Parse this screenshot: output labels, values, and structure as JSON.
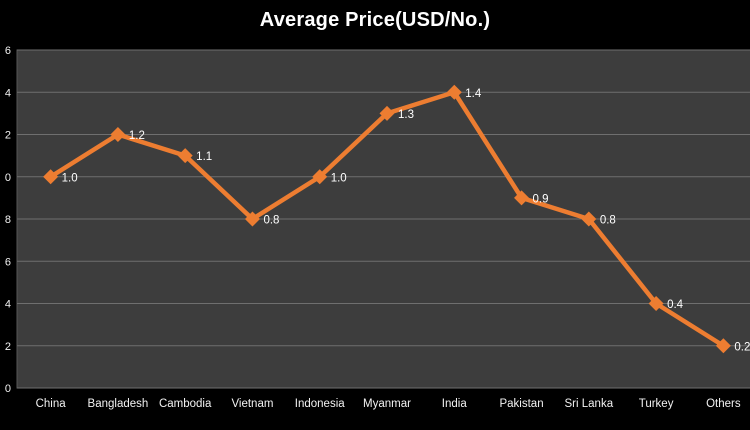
{
  "title": "Average Price(USD/No.)",
  "chart_data": {
    "type": "line",
    "title": "Average Price(USD/No.)",
    "categories": [
      "China",
      "Bangladesh",
      "Cambodia",
      "Vietnam",
      "Indonesia",
      "Myanmar",
      "India",
      "Pakistan",
      "Sri Lanka",
      "Turkey",
      "Others"
    ],
    "series": [
      {
        "name": "Average Price (USD/No.)",
        "values": [
          1.0,
          1.2,
          1.1,
          0.8,
          1.0,
          1.3,
          1.4,
          0.9,
          0.8,
          0.4,
          0.2
        ],
        "data_labels": [
          "1.0",
          "1.2",
          "1.1",
          "0.8",
          "1.0",
          "1.3",
          "1.4",
          "0.9",
          "0.8",
          "0.4",
          "0.2"
        ],
        "color": "#ED7D31",
        "marker": "diamond"
      }
    ],
    "xlabel": "",
    "ylabel": "",
    "ylim": [
      0,
      1.6
    ],
    "y_tick_step": 0.2,
    "y_tick_labels_visible_bottom_to_top": [
      "0",
      "2",
      "4",
      "6",
      "8",
      "0",
      "2",
      "4",
      "6"
    ],
    "grid": true,
    "legend_position": "none",
    "notes": "Y-axis tick labels are cropped by the image's left edge (only the final digit of each value is visible); the last data label (0.2) is clipped by the right edge."
  },
  "colors": {
    "background": "#000000",
    "plot_background": "#3D3D3D",
    "plot_border": "#565656",
    "gridline": "#6F6F6F",
    "line": "#ED7D31",
    "title_text": "#FFFFFF",
    "axis_text": "#F2F2F2",
    "data_label_text": "#FFFFFF"
  }
}
